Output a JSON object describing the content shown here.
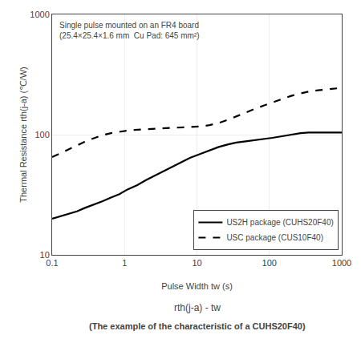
{
  "chart_data": {
    "type": "line",
    "x_label": "Pulse Width tw (s)",
    "y_label": "Thermal Resistance rth(j-a) (℃/W)",
    "annotations": [
      "Single pulse mounted on an FR4 board",
      "(25.4×25.4×1.6 mm  Cu Pad: 645 mm²)",
      "rth(j-a) - tw",
      "(The example of the characteristic of a CUHS20F40)"
    ],
    "log": true,
    "xlim": [
      0.1,
      1000
    ],
    "ylim": [
      10,
      1000
    ],
    "xticks": [
      0.1,
      1,
      10,
      100,
      1000
    ],
    "yticks": [
      10,
      100,
      1000
    ],
    "grid": true,
    "legend": "lower right",
    "x": [
      0.1,
      0.13,
      0.17,
      0.22,
      0.28,
      0.37,
      0.5,
      0.65,
      0.85,
      1.1,
      1.5,
      2.0,
      2.7,
      3.5,
      4.7,
      6.0,
      8.0,
      11,
      15,
      20,
      27,
      35,
      47,
      65,
      85,
      110,
      150,
      200,
      270,
      350,
      470,
      600,
      800,
      1000
    ],
    "series": [
      {
        "name": "US2H package (CUHS20F40)",
        "color": "#000000",
        "line_style": "solid",
        "values": [
          20,
          21,
          22,
          23,
          24.5,
          26,
          28,
          30,
          32,
          35,
          38,
          42,
          46,
          50,
          55,
          59,
          64,
          69,
          74,
          79,
          83,
          86,
          88,
          90,
          92,
          94,
          97,
          100,
          103,
          104,
          104,
          104,
          104,
          104
        ]
      },
      {
        "name": "USC package (CUS10F40)",
        "color": "#000000",
        "line_style": "dash",
        "values": [
          65,
          70,
          76,
          82,
          87,
          93,
          99,
          103,
          106,
          108,
          110,
          111,
          112,
          112,
          113,
          114,
          115,
          117,
          120,
          125,
          133,
          142,
          153,
          165,
          175,
          185,
          198,
          210,
          220,
          228,
          234,
          238,
          242,
          245
        ]
      }
    ]
  }
}
